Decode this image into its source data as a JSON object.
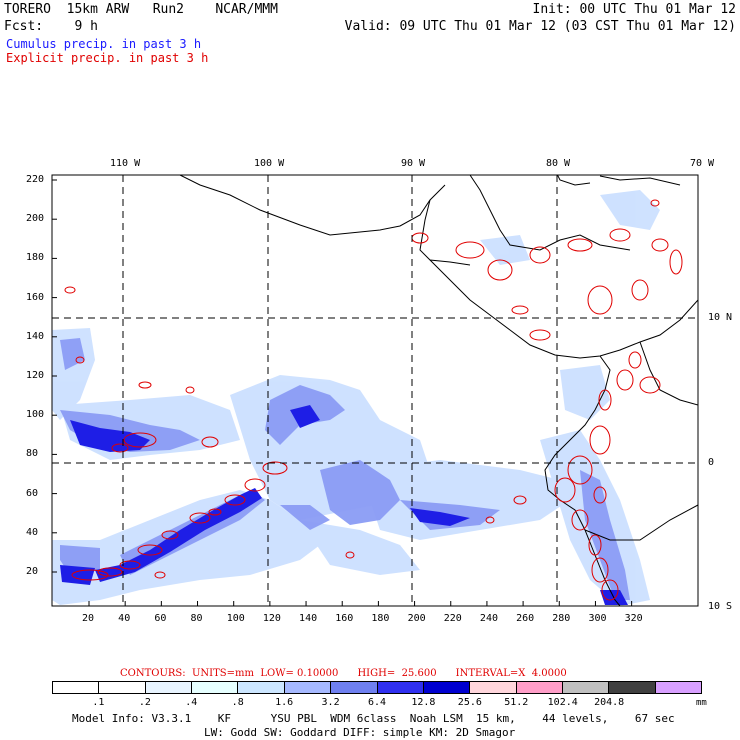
{
  "header": {
    "model": "TORERO  15km ARW   Run2    NCAR/MMM",
    "init": "Init: 00 UTC Thu 01 Mar 12",
    "fcst": "Fcst:    9 h",
    "valid": "Valid: 09 UTC Thu 01 Mar 12 (03 CST Thu 01 Mar 12)",
    "cumulus": "Cumulus precip. in past 3 h",
    "explicit": "Explicit precip. in past 3 h",
    "cumulus_color": "#1a1aff",
    "explicit_color": "#e00000"
  },
  "map": {
    "top_lon_labels": [
      "110 W",
      "100 W",
      "90 W",
      "80 W",
      "70 W"
    ],
    "right_lat_labels": [
      "10 N",
      "0",
      "10 S"
    ],
    "x_ticks": [
      "20",
      "40",
      "60",
      "80",
      "100",
      "120",
      "140",
      "160",
      "180",
      "200",
      "220",
      "240",
      "260",
      "280",
      "300",
      "320"
    ],
    "y_ticks": [
      "20",
      "40",
      "60",
      "80",
      "100",
      "120",
      "140",
      "160",
      "180",
      "200",
      "220"
    ]
  },
  "contours": {
    "label": "CONTOURS:  UNITS=mm  LOW= 0.10000      HIGH=  25.600      INTERVAL=X  4.0000"
  },
  "legend": {
    "values": [
      ".1",
      ".2",
      ".4",
      ".8",
      "1.6",
      "3.2",
      "6.4",
      "12.8",
      "25.6",
      "51.2",
      "102.4",
      "204.8"
    ],
    "unit": "mm",
    "colors": [
      "#ffffff",
      "#ffffff",
      "#e8f4ff",
      "#e6ffff",
      "#cce6ff",
      "#a6b9ff",
      "#6f80f0",
      "#3030f0",
      "#0000d0",
      "#ffd6dc",
      "#ff9ec8",
      "#c0c0c0",
      "#404040",
      "#d8a0ff"
    ]
  },
  "model_info": {
    "line1": "Model Info: V3.3.1    KF      YSU PBL  WDM 6class  Noah LSM  15 km,    44 levels,    67 sec",
    "line2": "LW: Godd SW: Goddard DIFF: simple KM: 2D Smagor"
  }
}
